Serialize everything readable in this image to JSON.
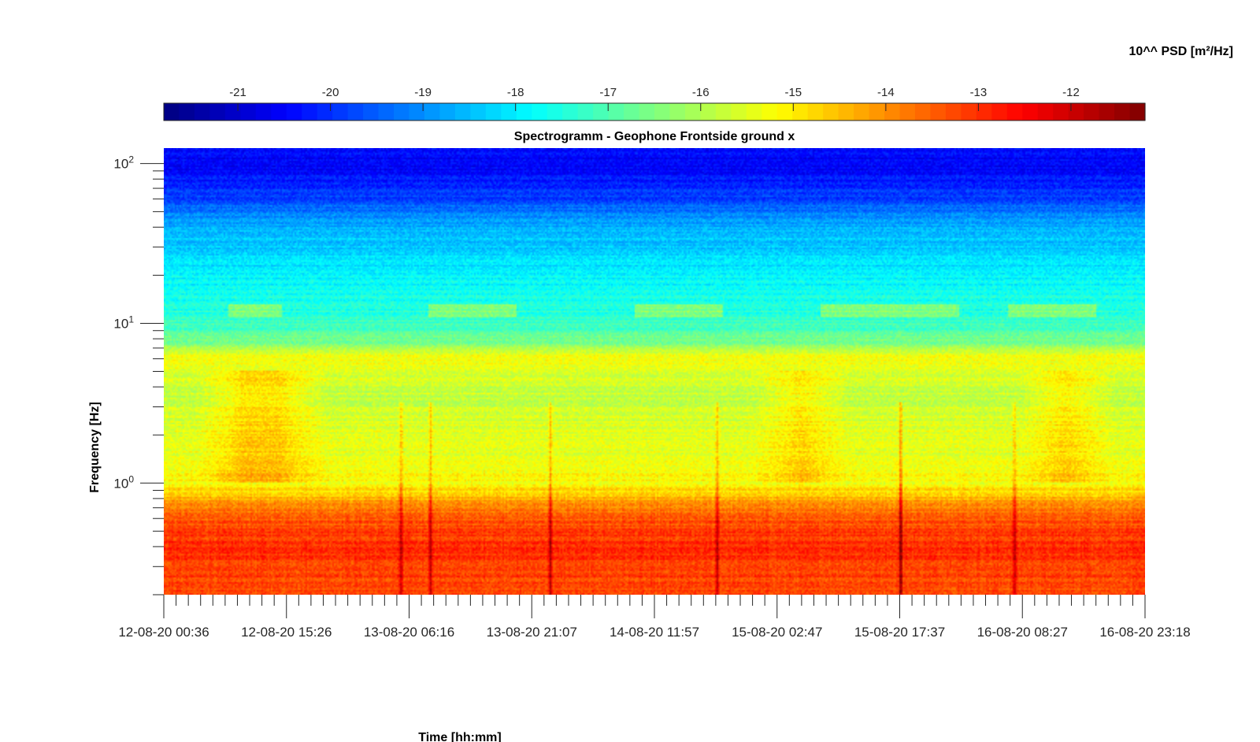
{
  "colorbar": {
    "label": "10^^ PSD [m²/Hz]",
    "ticks": [
      -21,
      -20,
      -19,
      -18,
      -17,
      -16,
      -15,
      -14,
      -13,
      -12
    ],
    "range": [
      -21.8,
      -11.2
    ],
    "colormap": "jet"
  },
  "chart_data": {
    "type": "heatmap",
    "title": "Spectrogramm - Geophone Frontside ground x",
    "xlabel": "Time [hh:mm]",
    "ylabel": "Frequency [Hz]",
    "x_ticks": [
      "12-08-20 00:36",
      "12-08-20 15:26",
      "13-08-20 06:16",
      "13-08-20 21:07",
      "14-08-20 11:57",
      "15-08-20 02:47",
      "15-08-20 17:37",
      "16-08-20 08:27",
      "16-08-20 23:18"
    ],
    "y_scale": "log",
    "y_ticks": [
      {
        "base": "10",
        "exp": "0",
        "value": 1
      },
      {
        "base": "10",
        "exp": "1",
        "value": 10
      },
      {
        "base": "10",
        "exp": "2",
        "value": 100
      }
    ],
    "ylim": [
      0.2,
      125
    ],
    "value_scale": "log10 PSD [m²/Hz]",
    "profile": [
      {
        "freq": 0.2,
        "log_psd": -13.3
      },
      {
        "freq": 0.4,
        "log_psd": -13.0
      },
      {
        "freq": 0.6,
        "log_psd": -13.4
      },
      {
        "freq": 0.8,
        "log_psd": -14.4
      },
      {
        "freq": 1.0,
        "log_psd": -15.2
      },
      {
        "freq": 2.0,
        "log_psd": -15.5
      },
      {
        "freq": 4.0,
        "log_psd": -15.8
      },
      {
        "freq": 6.0,
        "log_psd": -15.2
      },
      {
        "freq": 8.0,
        "log_psd": -16.8
      },
      {
        "freq": 12.0,
        "log_psd": -17.5
      },
      {
        "freq": 20.0,
        "log_psd": -17.9
      },
      {
        "freq": 40.0,
        "log_psd": -18.6
      },
      {
        "freq": 60.0,
        "log_psd": -19.8
      },
      {
        "freq": 100.0,
        "log_psd": -20.6
      },
      {
        "freq": 125.0,
        "log_psd": -20.4
      }
    ]
  }
}
